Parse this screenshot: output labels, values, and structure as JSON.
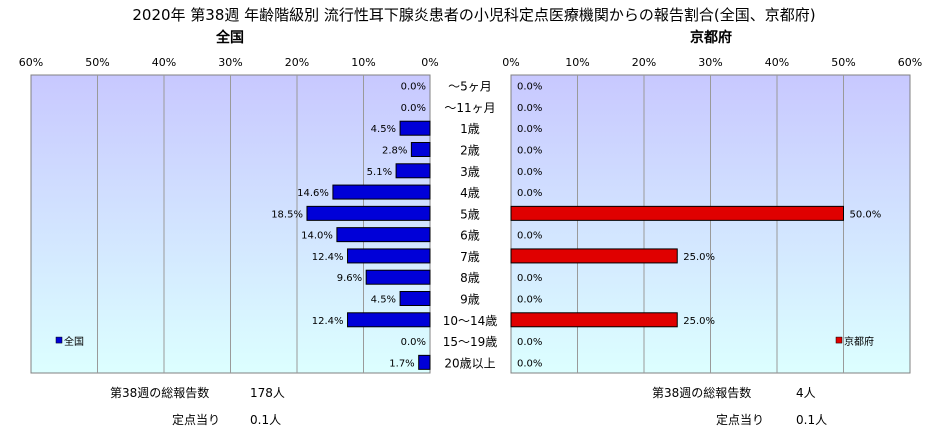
{
  "title": "2020年 第38週 年齢階級別 流行性耳下腺炎患者の小児科定点医療機関からの報告割合(全国、京都府)",
  "chart_data": {
    "type": "bar",
    "orientation": "horizontal-butterfly",
    "categories": [
      "～5ヶ月",
      "～11ヶ月",
      "1歳",
      "2歳",
      "3歳",
      "4歳",
      "5歳",
      "6歳",
      "7歳",
      "8歳",
      "9歳",
      "10～14歳",
      "15～19歳",
      "20歳以上"
    ],
    "panels": [
      {
        "subtitle": "全国",
        "legend": "全国",
        "legend_position": "bottom-left",
        "color": "#0000d8",
        "direction": "left",
        "xlim": [
          0,
          60
        ],
        "ticks": [
          "60%",
          "50%",
          "40%",
          "30%",
          "20%",
          "10%",
          "0%"
        ],
        "values": [
          0.0,
          0.0,
          4.5,
          2.8,
          5.1,
          14.6,
          18.5,
          14.0,
          12.4,
          9.6,
          4.5,
          12.4,
          0.0,
          1.7
        ],
        "labels": [
          "0.0%",
          "0.0%",
          "4.5%",
          "2.8%",
          "5.1%",
          "14.6%",
          "18.5%",
          "14.0%",
          "12.4%",
          "9.6%",
          "4.5%",
          "12.4%",
          "0.0%",
          "1.7%"
        ],
        "footer": {
          "total_label": "第38週の総報告数",
          "total_value": "178人",
          "per_label": "定点当り",
          "per_value": "0.1人"
        }
      },
      {
        "subtitle": "京都府",
        "legend": "京都府",
        "legend_position": "bottom-right",
        "color": "#e00000",
        "direction": "right",
        "xlim": [
          0,
          60
        ],
        "ticks": [
          "0%",
          "10%",
          "20%",
          "30%",
          "40%",
          "50%",
          "60%"
        ],
        "values": [
          0.0,
          0.0,
          0.0,
          0.0,
          0.0,
          0.0,
          50.0,
          0.0,
          25.0,
          0.0,
          0.0,
          25.0,
          0.0,
          0.0
        ],
        "labels": [
          "0.0%",
          "0.0%",
          "0.0%",
          "0.0%",
          "0.0%",
          "0.0%",
          "50.0%",
          "0.0%",
          "25.0%",
          "0.0%",
          "0.0%",
          "25.0%",
          "0.0%",
          "0.0%"
        ],
        "footer": {
          "total_label": "第38週の総報告数",
          "total_value": "4人",
          "per_label": "定点当り",
          "per_value": "0.1人"
        }
      }
    ],
    "grid": true
  }
}
